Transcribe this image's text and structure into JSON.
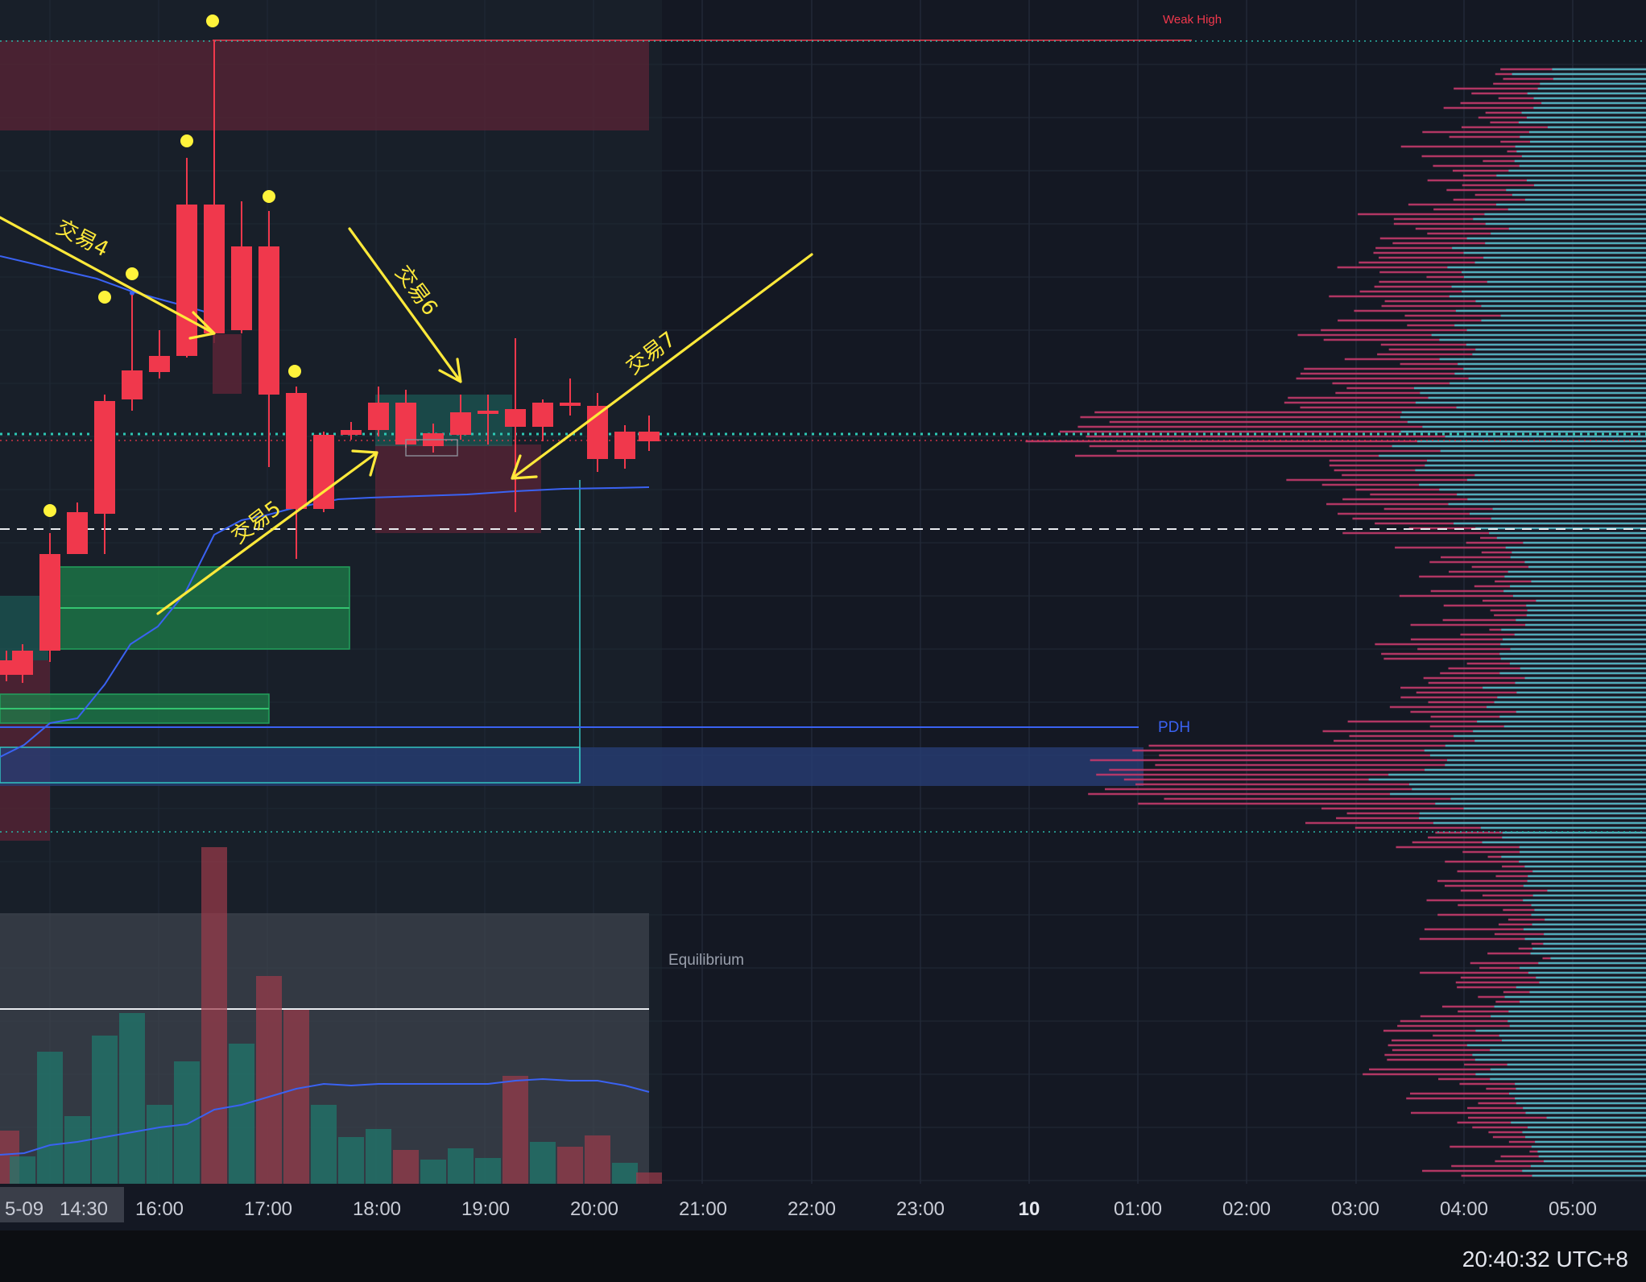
{
  "chart_data": {
    "type": "candlestick",
    "x_ticks": [
      "5-09",
      "14:30",
      "16:00",
      "17:00",
      "18:00",
      "19:00",
      "20:00",
      "21:00",
      "22:00",
      "23:00",
      "10",
      "01:00",
      "02:00",
      "03:00",
      "04:00",
      "05:00"
    ],
    "labels": {
      "weak_high": "Weak High",
      "pdh": "PDH",
      "equilibrium": "Equilibrium"
    },
    "annotations": [
      "交易4",
      "交易5",
      "交易6",
      "交易7"
    ],
    "colors": {
      "bull": "#1e9e86",
      "bear": "#f0384c",
      "vwap": "#3a62f2",
      "annotation": "#ffe93a",
      "background": "#141823"
    }
  },
  "status": {
    "clock": "20:40:32 UTC+8"
  }
}
